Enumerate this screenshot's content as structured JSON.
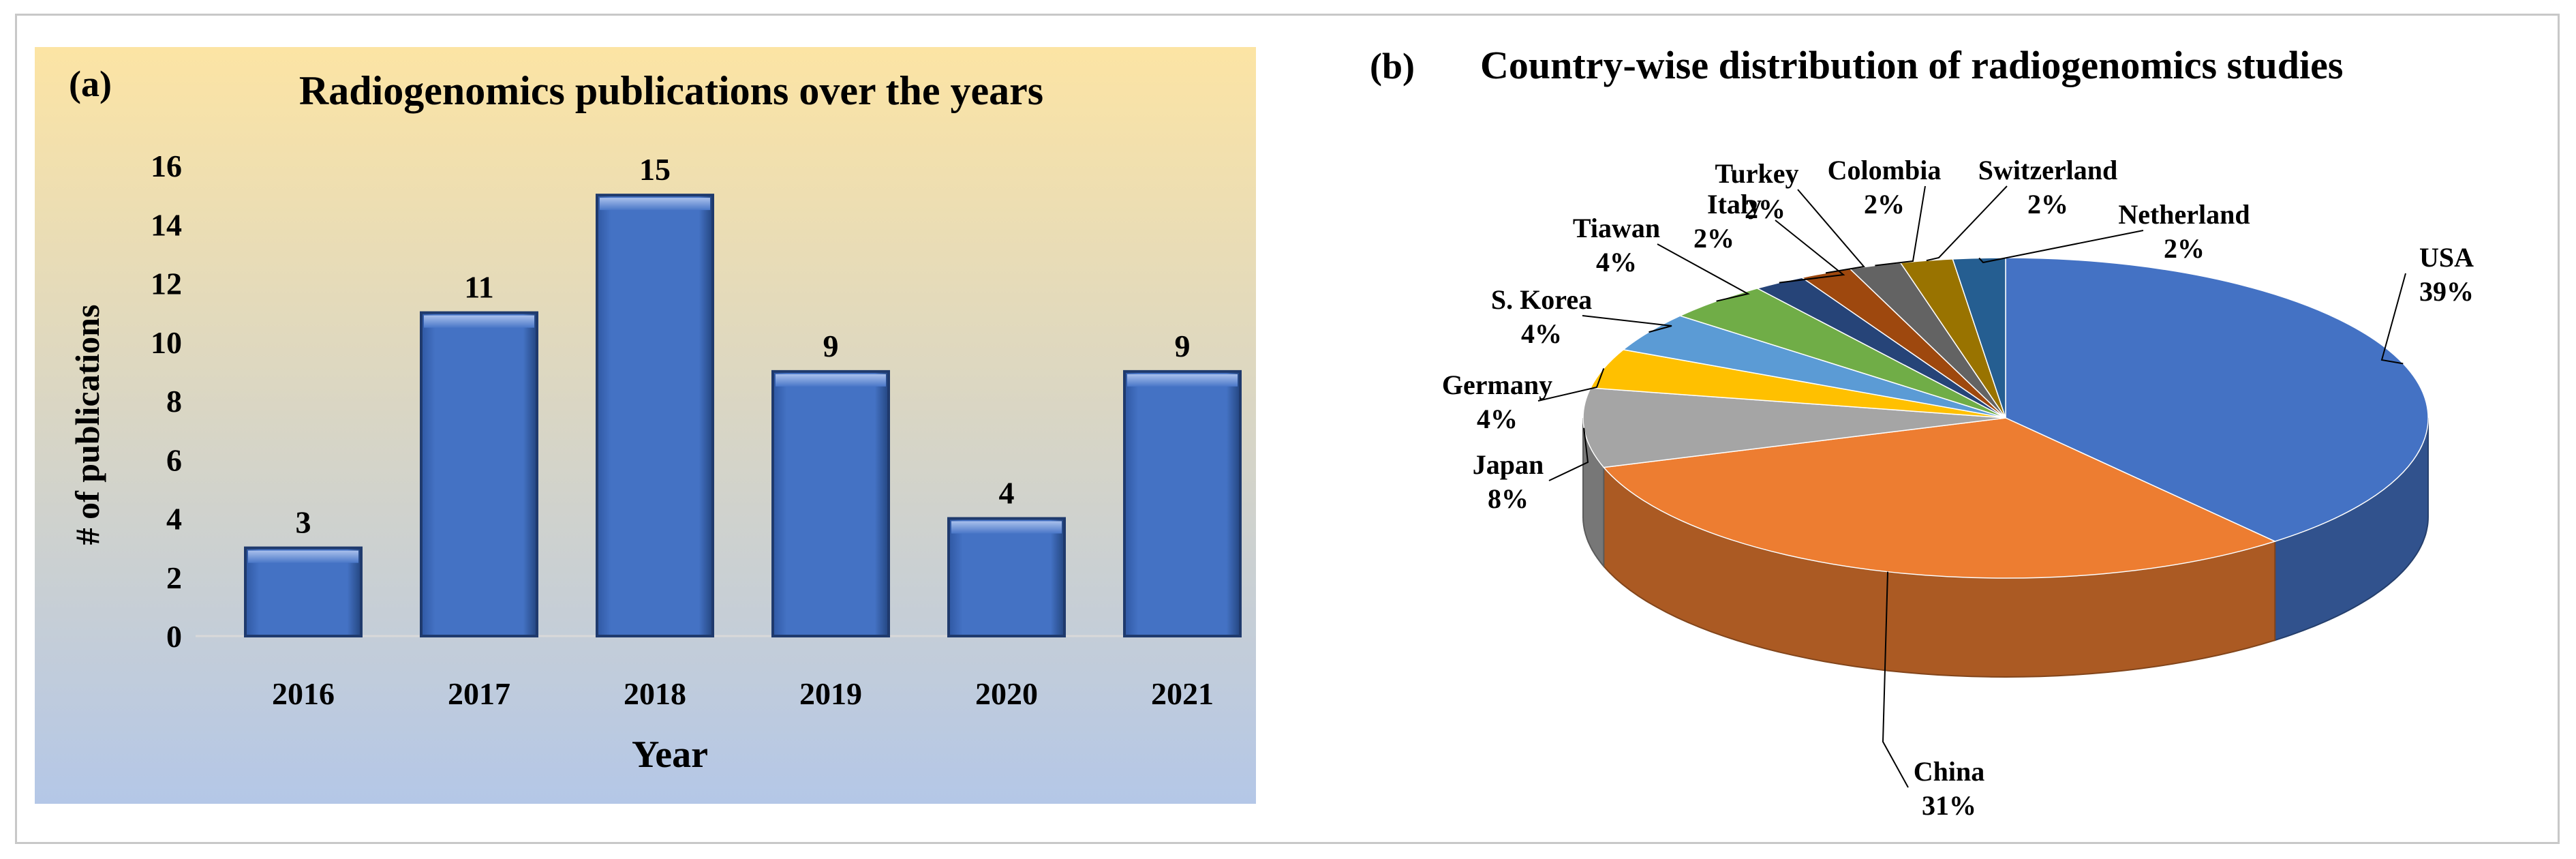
{
  "figure": {
    "panel_a": {
      "letter": "(a)",
      "chart_data": {
        "type": "bar",
        "title": "Radiogenomics publications over the years",
        "xlabel": "Year",
        "ylabel": "# of publications",
        "categories": [
          "2016",
          "2017",
          "2018",
          "2019",
          "2020",
          "2021"
        ],
        "values": [
          3,
          11,
          15,
          9,
          4,
          9
        ],
        "data_labels": [
          "3",
          "11",
          "15",
          "9",
          "4",
          "9"
        ],
        "yticks": [
          "0",
          "2",
          "4",
          "6",
          "8",
          "10",
          "12",
          "14",
          "16"
        ],
        "ylim": [
          0,
          16
        ],
        "grid": false,
        "bar_color": "#4472C4",
        "background_gradient": [
          "#FCE4A4",
          "#B4C7E7"
        ]
      }
    },
    "panel_b": {
      "letter": "(b)",
      "chart_data": {
        "type": "pie",
        "title": "Country-wise distribution of radiogenomics studies",
        "style": "3d",
        "slices": [
          {
            "label": "USA",
            "value": 39,
            "pct": "39%",
            "color": "#4472C4"
          },
          {
            "label": "China",
            "value": 31,
            "pct": "31%",
            "color": "#ED7D31"
          },
          {
            "label": "Japan",
            "value": 8,
            "pct": "8%",
            "color": "#A5A5A5"
          },
          {
            "label": "Germany",
            "value": 4,
            "pct": "4%",
            "color": "#FFC000"
          },
          {
            "label": "S. Korea",
            "value": 4,
            "pct": "4%",
            "color": "#5B9BD5"
          },
          {
            "label": "Tiawan",
            "value": 4,
            "pct": "4%",
            "color": "#70AD47"
          },
          {
            "label": "Italy",
            "value": 2,
            "pct": "2%",
            "color": "#264478"
          },
          {
            "label": "Turkey",
            "value": 2,
            "pct": "2%",
            "color": "#9E480E"
          },
          {
            "label": "Colombia",
            "value": 2,
            "pct": "2%",
            "color": "#636363"
          },
          {
            "label": "Switzerland",
            "value": 2,
            "pct": "2%",
            "color": "#997300"
          },
          {
            "label": "Netherland",
            "value": 2,
            "pct": "2%",
            "color": "#255E91"
          }
        ]
      }
    }
  }
}
